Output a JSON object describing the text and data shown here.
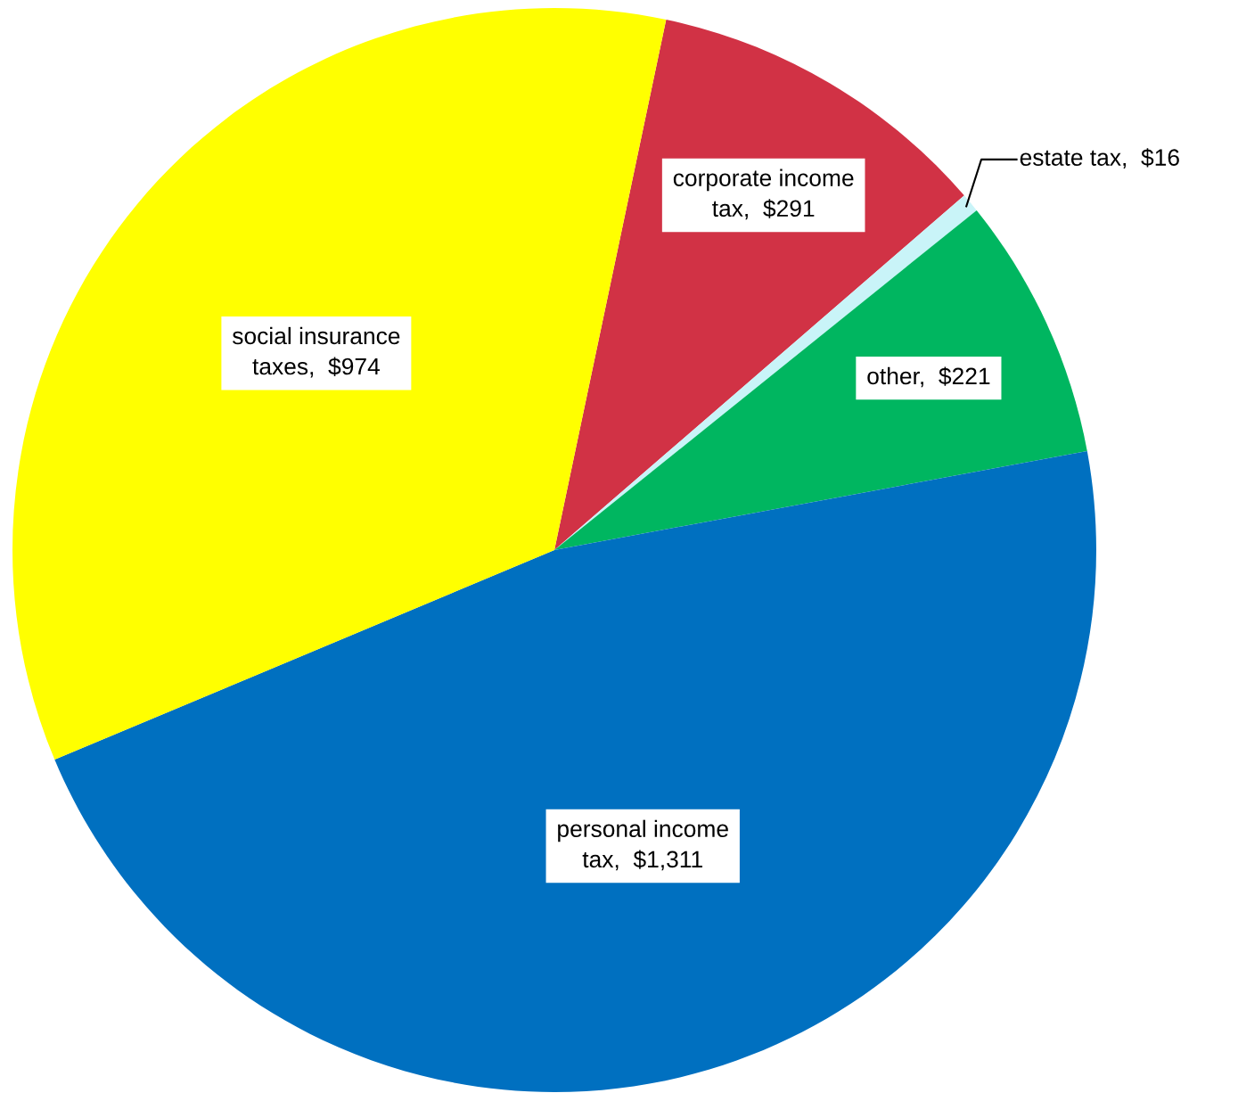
{
  "chart_data": {
    "type": "pie",
    "categories": [
      "corporate income tax",
      "estate tax",
      "other",
      "personal income tax",
      "social insurance taxes"
    ],
    "values": [
      291,
      16,
      221,
      1311,
      974
    ],
    "value_labels": [
      "$291",
      "$16",
      "$221",
      "$1,311",
      "$974"
    ],
    "colors": [
      "#d13245",
      "#c9f4f8",
      "#00b660",
      "#0070c0",
      "#ffff00"
    ],
    "legend": false
  }
}
